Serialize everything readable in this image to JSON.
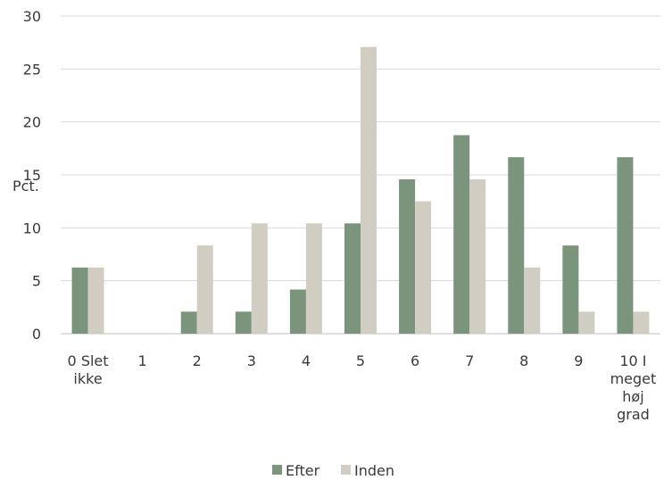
{
  "chart_data": {
    "type": "bar",
    "ylabel": "Pct.",
    "ylim": [
      0,
      30
    ],
    "yticks": [
      0,
      5,
      10,
      15,
      20,
      25,
      30
    ],
    "grid": true,
    "legend": "bottom-center",
    "categories": [
      [
        "0 Slet",
        "ikke"
      ],
      [
        "1"
      ],
      [
        "2"
      ],
      [
        "3"
      ],
      [
        "4"
      ],
      [
        "5"
      ],
      [
        "6"
      ],
      [
        "7"
      ],
      [
        "8"
      ],
      [
        "9"
      ],
      [
        "10 I",
        "meget",
        "høj",
        "grad"
      ]
    ],
    "series": [
      {
        "name": "Efter",
        "color": "#7a957c",
        "values": [
          6.25,
          0,
          2.08,
          2.08,
          4.17,
          10.42,
          14.58,
          18.75,
          16.67,
          8.33,
          16.67
        ]
      },
      {
        "name": "Inden",
        "color": "#d1cdc2",
        "values": [
          6.25,
          0,
          8.33,
          10.42,
          10.42,
          27.08,
          12.5,
          14.58,
          6.25,
          2.08,
          2.08
        ]
      }
    ]
  }
}
